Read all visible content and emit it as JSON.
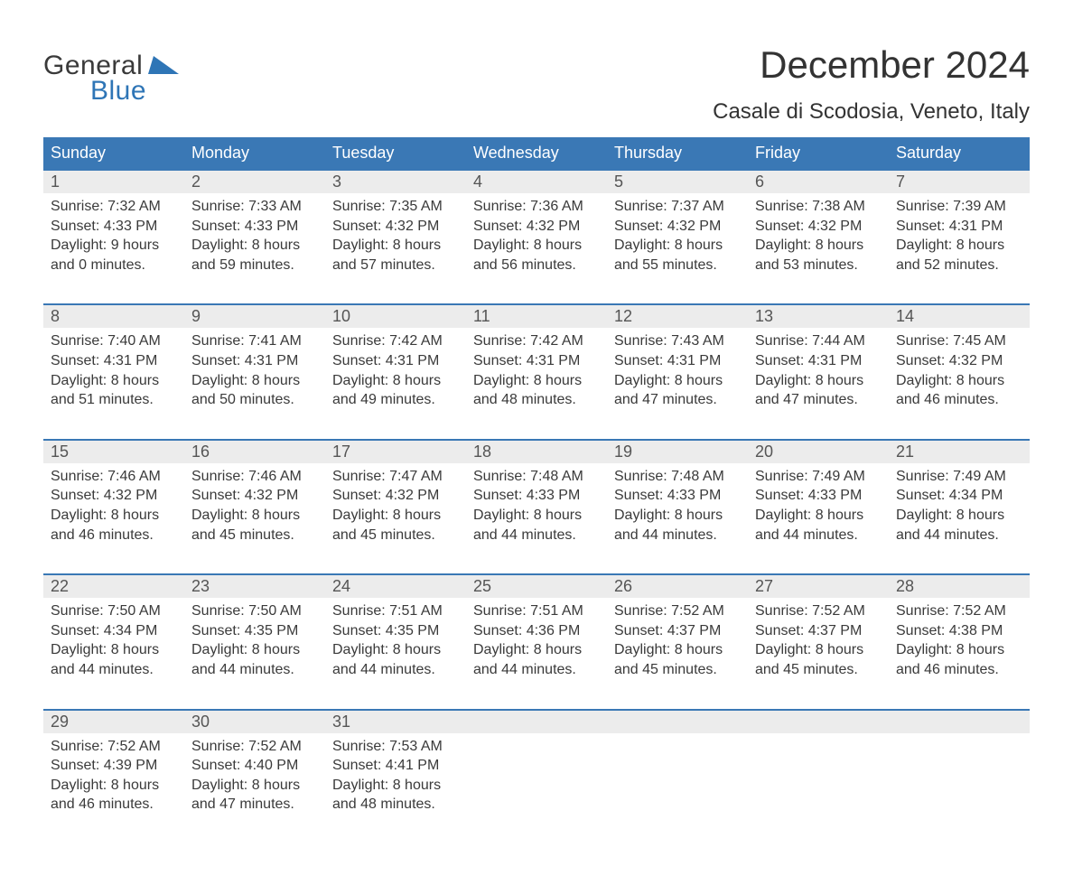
{
  "logo": {
    "word1": "General",
    "word2": "Blue",
    "text_color": "#3a3a3a",
    "accent_color": "#2e75b6"
  },
  "title": "December 2024",
  "location": "Casale di Scodosia, Veneto, Italy",
  "calendar": {
    "type": "table",
    "header_bg": "#3a78b5",
    "header_text": "#ffffff",
    "row_accent": "#3a78b5",
    "daynum_bg": "#ececec",
    "body_bg": "#ffffff",
    "text_color": "#3a3a3a",
    "columns": [
      "Sunday",
      "Monday",
      "Tuesday",
      "Wednesday",
      "Thursday",
      "Friday",
      "Saturday"
    ],
    "weeks": [
      [
        {
          "n": "1",
          "sunrise": "Sunrise: 7:32 AM",
          "sunset": "Sunset: 4:33 PM",
          "d1": "Daylight: 9 hours",
          "d2": "and 0 minutes."
        },
        {
          "n": "2",
          "sunrise": "Sunrise: 7:33 AM",
          "sunset": "Sunset: 4:33 PM",
          "d1": "Daylight: 8 hours",
          "d2": "and 59 minutes."
        },
        {
          "n": "3",
          "sunrise": "Sunrise: 7:35 AM",
          "sunset": "Sunset: 4:32 PM",
          "d1": "Daylight: 8 hours",
          "d2": "and 57 minutes."
        },
        {
          "n": "4",
          "sunrise": "Sunrise: 7:36 AM",
          "sunset": "Sunset: 4:32 PM",
          "d1": "Daylight: 8 hours",
          "d2": "and 56 minutes."
        },
        {
          "n": "5",
          "sunrise": "Sunrise: 7:37 AM",
          "sunset": "Sunset: 4:32 PM",
          "d1": "Daylight: 8 hours",
          "d2": "and 55 minutes."
        },
        {
          "n": "6",
          "sunrise": "Sunrise: 7:38 AM",
          "sunset": "Sunset: 4:32 PM",
          "d1": "Daylight: 8 hours",
          "d2": "and 53 minutes."
        },
        {
          "n": "7",
          "sunrise": "Sunrise: 7:39 AM",
          "sunset": "Sunset: 4:31 PM",
          "d1": "Daylight: 8 hours",
          "d2": "and 52 minutes."
        }
      ],
      [
        {
          "n": "8",
          "sunrise": "Sunrise: 7:40 AM",
          "sunset": "Sunset: 4:31 PM",
          "d1": "Daylight: 8 hours",
          "d2": "and 51 minutes."
        },
        {
          "n": "9",
          "sunrise": "Sunrise: 7:41 AM",
          "sunset": "Sunset: 4:31 PM",
          "d1": "Daylight: 8 hours",
          "d2": "and 50 minutes."
        },
        {
          "n": "10",
          "sunrise": "Sunrise: 7:42 AM",
          "sunset": "Sunset: 4:31 PM",
          "d1": "Daylight: 8 hours",
          "d2": "and 49 minutes."
        },
        {
          "n": "11",
          "sunrise": "Sunrise: 7:42 AM",
          "sunset": "Sunset: 4:31 PM",
          "d1": "Daylight: 8 hours",
          "d2": "and 48 minutes."
        },
        {
          "n": "12",
          "sunrise": "Sunrise: 7:43 AM",
          "sunset": "Sunset: 4:31 PM",
          "d1": "Daylight: 8 hours",
          "d2": "and 47 minutes."
        },
        {
          "n": "13",
          "sunrise": "Sunrise: 7:44 AM",
          "sunset": "Sunset: 4:31 PM",
          "d1": "Daylight: 8 hours",
          "d2": "and 47 minutes."
        },
        {
          "n": "14",
          "sunrise": "Sunrise: 7:45 AM",
          "sunset": "Sunset: 4:32 PM",
          "d1": "Daylight: 8 hours",
          "d2": "and 46 minutes."
        }
      ],
      [
        {
          "n": "15",
          "sunrise": "Sunrise: 7:46 AM",
          "sunset": "Sunset: 4:32 PM",
          "d1": "Daylight: 8 hours",
          "d2": "and 46 minutes."
        },
        {
          "n": "16",
          "sunrise": "Sunrise: 7:46 AM",
          "sunset": "Sunset: 4:32 PM",
          "d1": "Daylight: 8 hours",
          "d2": "and 45 minutes."
        },
        {
          "n": "17",
          "sunrise": "Sunrise: 7:47 AM",
          "sunset": "Sunset: 4:32 PM",
          "d1": "Daylight: 8 hours",
          "d2": "and 45 minutes."
        },
        {
          "n": "18",
          "sunrise": "Sunrise: 7:48 AM",
          "sunset": "Sunset: 4:33 PM",
          "d1": "Daylight: 8 hours",
          "d2": "and 44 minutes."
        },
        {
          "n": "19",
          "sunrise": "Sunrise: 7:48 AM",
          "sunset": "Sunset: 4:33 PM",
          "d1": "Daylight: 8 hours",
          "d2": "and 44 minutes."
        },
        {
          "n": "20",
          "sunrise": "Sunrise: 7:49 AM",
          "sunset": "Sunset: 4:33 PM",
          "d1": "Daylight: 8 hours",
          "d2": "and 44 minutes."
        },
        {
          "n": "21",
          "sunrise": "Sunrise: 7:49 AM",
          "sunset": "Sunset: 4:34 PM",
          "d1": "Daylight: 8 hours",
          "d2": "and 44 minutes."
        }
      ],
      [
        {
          "n": "22",
          "sunrise": "Sunrise: 7:50 AM",
          "sunset": "Sunset: 4:34 PM",
          "d1": "Daylight: 8 hours",
          "d2": "and 44 minutes."
        },
        {
          "n": "23",
          "sunrise": "Sunrise: 7:50 AM",
          "sunset": "Sunset: 4:35 PM",
          "d1": "Daylight: 8 hours",
          "d2": "and 44 minutes."
        },
        {
          "n": "24",
          "sunrise": "Sunrise: 7:51 AM",
          "sunset": "Sunset: 4:35 PM",
          "d1": "Daylight: 8 hours",
          "d2": "and 44 minutes."
        },
        {
          "n": "25",
          "sunrise": "Sunrise: 7:51 AM",
          "sunset": "Sunset: 4:36 PM",
          "d1": "Daylight: 8 hours",
          "d2": "and 44 minutes."
        },
        {
          "n": "26",
          "sunrise": "Sunrise: 7:52 AM",
          "sunset": "Sunset: 4:37 PM",
          "d1": "Daylight: 8 hours",
          "d2": "and 45 minutes."
        },
        {
          "n": "27",
          "sunrise": "Sunrise: 7:52 AM",
          "sunset": "Sunset: 4:37 PM",
          "d1": "Daylight: 8 hours",
          "d2": "and 45 minutes."
        },
        {
          "n": "28",
          "sunrise": "Sunrise: 7:52 AM",
          "sunset": "Sunset: 4:38 PM",
          "d1": "Daylight: 8 hours",
          "d2": "and 46 minutes."
        }
      ],
      [
        {
          "n": "29",
          "sunrise": "Sunrise: 7:52 AM",
          "sunset": "Sunset: 4:39 PM",
          "d1": "Daylight: 8 hours",
          "d2": "and 46 minutes."
        },
        {
          "n": "30",
          "sunrise": "Sunrise: 7:52 AM",
          "sunset": "Sunset: 4:40 PM",
          "d1": "Daylight: 8 hours",
          "d2": "and 47 minutes."
        },
        {
          "n": "31",
          "sunrise": "Sunrise: 7:53 AM",
          "sunset": "Sunset: 4:41 PM",
          "d1": "Daylight: 8 hours",
          "d2": "and 48 minutes."
        },
        {
          "n": "",
          "sunrise": "",
          "sunset": "",
          "d1": "",
          "d2": ""
        },
        {
          "n": "",
          "sunrise": "",
          "sunset": "",
          "d1": "",
          "d2": ""
        },
        {
          "n": "",
          "sunrise": "",
          "sunset": "",
          "d1": "",
          "d2": ""
        },
        {
          "n": "",
          "sunrise": "",
          "sunset": "",
          "d1": "",
          "d2": ""
        }
      ]
    ]
  }
}
